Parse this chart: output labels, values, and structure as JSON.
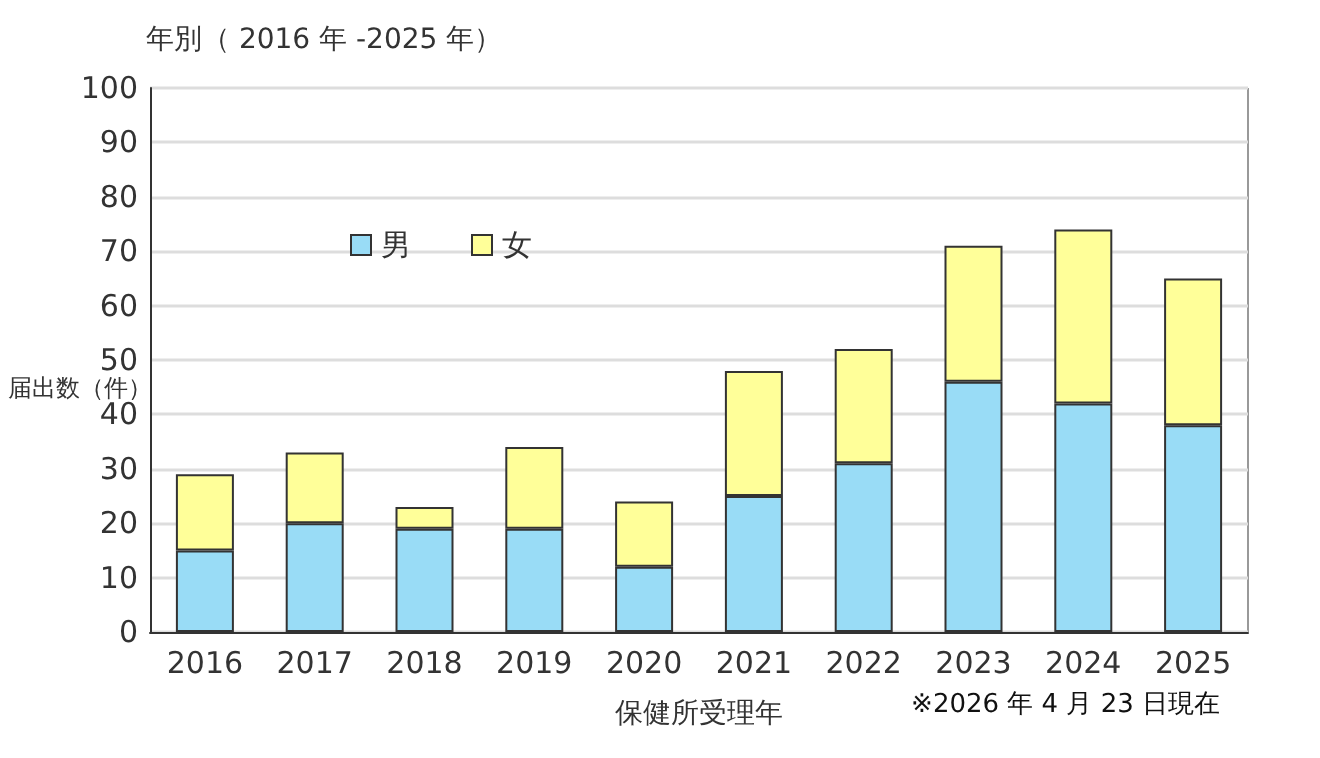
{
  "chart_data": {
    "type": "bar",
    "title": "年別（ 2016 年 -2025 年）",
    "xlabel": "保健所受理年",
    "ylabel": "届出数（件）",
    "annotations": [
      "※2026 年 4 月 23 日現在"
    ],
    "categories": [
      "2016",
      "2017",
      "2018",
      "2019",
      "2020",
      "2021",
      "2022",
      "2023",
      "2024",
      "2025"
    ],
    "stacked": true,
    "series": [
      {
        "name": "男",
        "color": "#99dcf6",
        "values": [
          15,
          20,
          19,
          19,
          12,
          25,
          31,
          46,
          42,
          38
        ]
      },
      {
        "name": "女",
        "color": "#ffff99",
        "values": [
          14,
          13,
          4,
          15,
          12,
          23,
          21,
          25,
          32,
          27
        ]
      }
    ],
    "ylim": [
      0,
      100
    ],
    "yticks": [
      0,
      10,
      20,
      30,
      40,
      50,
      60,
      70,
      80,
      90,
      100
    ],
    "grid": "y",
    "legend": "top left"
  }
}
